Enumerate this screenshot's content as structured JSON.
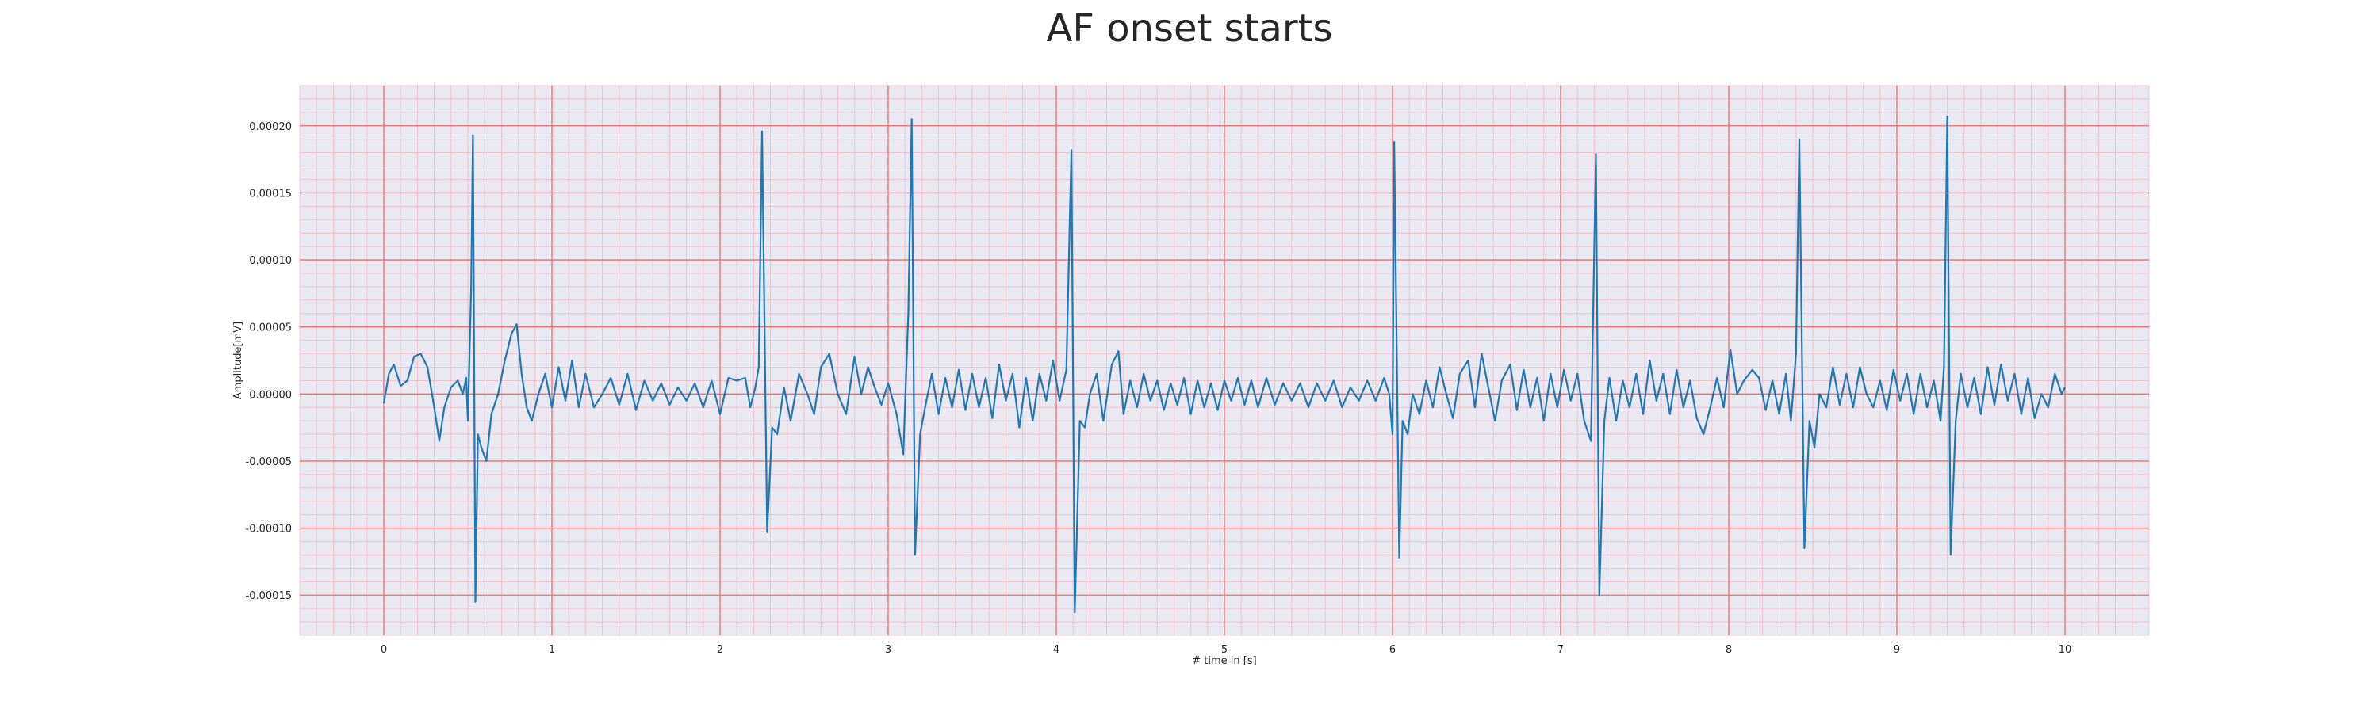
{
  "chart_data": {
    "type": "line",
    "title": "AF onset starts",
    "xlabel": "# time in [s]",
    "ylabel": "Amplitude[mV]",
    "xlim": [
      -0.5,
      10.5
    ],
    "ylim": [
      -0.00018,
      0.00023
    ],
    "x_ticks": [
      0,
      1,
      2,
      3,
      4,
      5,
      6,
      7,
      8,
      9,
      10
    ],
    "x_tick_labels": [
      "0",
      "1",
      "2",
      "3",
      "4",
      "5",
      "6",
      "7",
      "8",
      "9",
      "10"
    ],
    "y_ticks": [
      0.0002,
      0.00015,
      0.0001,
      5e-05,
      0,
      -5e-05,
      -0.0001,
      -0.00015
    ],
    "y_tick_labels": [
      "0.00020",
      "0.00015",
      "0.00010",
      "0.00005",
      "0.00000",
      "-0.00005",
      "-0.00010",
      "-0.00015"
    ],
    "grid": true,
    "colors": {
      "plot_background": "#eae9f2",
      "major_grid": "#f26d6d",
      "minor_grid": "#f3b8c6",
      "line": "#1f77b4"
    },
    "series": [
      {
        "values": [
          [
            0.0,
            -7e-06
          ],
          [
            0.03,
            1.5e-05
          ],
          [
            0.06,
            2.2e-05
          ],
          [
            0.1,
            6e-06
          ],
          [
            0.14,
            1e-05
          ],
          [
            0.18,
            2.8e-05
          ],
          [
            0.22,
            3e-05
          ],
          [
            0.26,
            2e-05
          ],
          [
            0.3,
            -1e-05
          ],
          [
            0.33,
            -3.5e-05
          ],
          [
            0.36,
            -1e-05
          ],
          [
            0.4,
            5e-06
          ],
          [
            0.44,
            1e-05
          ],
          [
            0.47,
            0.0
          ],
          [
            0.49,
            1.2e-05
          ],
          [
            0.5,
            -2e-05
          ],
          [
            0.52,
            8e-05
          ],
          [
            0.53,
            0.000193
          ],
          [
            0.545,
            -0.000155
          ],
          [
            0.56,
            -3e-05
          ],
          [
            0.58,
            -4e-05
          ],
          [
            0.61,
            -5e-05
          ],
          [
            0.64,
            -1.5e-05
          ],
          [
            0.68,
            0.0
          ],
          [
            0.72,
            2.5e-05
          ],
          [
            0.76,
            4.5e-05
          ],
          [
            0.79,
            5.2e-05
          ],
          [
            0.82,
            1.5e-05
          ],
          [
            0.85,
            -1e-05
          ],
          [
            0.88,
            -2e-05
          ],
          [
            0.92,
            0.0
          ],
          [
            0.96,
            1.5e-05
          ],
          [
            1.0,
            -1e-05
          ],
          [
            1.04,
            2e-05
          ],
          [
            1.08,
            -5e-06
          ],
          [
            1.12,
            2.5e-05
          ],
          [
            1.16,
            -1e-05
          ],
          [
            1.2,
            1.5e-05
          ],
          [
            1.25,
            -1e-05
          ],
          [
            1.3,
            0.0
          ],
          [
            1.35,
            1.2e-05
          ],
          [
            1.4,
            -8e-06
          ],
          [
            1.45,
            1.5e-05
          ],
          [
            1.5,
            -1.2e-05
          ],
          [
            1.55,
            1e-05
          ],
          [
            1.6,
            -5e-06
          ],
          [
            1.65,
            8e-06
          ],
          [
            1.7,
            -8e-06
          ],
          [
            1.75,
            5e-06
          ],
          [
            1.8,
            -5e-06
          ],
          [
            1.85,
            8e-06
          ],
          [
            1.9,
            -1e-05
          ],
          [
            1.95,
            1e-05
          ],
          [
            2.0,
            -1.5e-05
          ],
          [
            2.05,
            1.2e-05
          ],
          [
            2.1,
            1e-05
          ],
          [
            2.15,
            1.2e-05
          ],
          [
            2.18,
            -1e-05
          ],
          [
            2.21,
            5e-06
          ],
          [
            2.23,
            2e-05
          ],
          [
            2.25,
            0.000196
          ],
          [
            2.28,
            -0.000103
          ],
          [
            2.31,
            -2.5e-05
          ],
          [
            2.34,
            -3e-05
          ],
          [
            2.38,
            5e-06
          ],
          [
            2.42,
            -2e-05
          ],
          [
            2.47,
            1.5e-05
          ],
          [
            2.52,
            0.0
          ],
          [
            2.56,
            -1.5e-05
          ],
          [
            2.6,
            2e-05
          ],
          [
            2.65,
            3e-05
          ],
          [
            2.7,
            0.0
          ],
          [
            2.75,
            -1.5e-05
          ],
          [
            2.8,
            2.8e-05
          ],
          [
            2.84,
            0.0
          ],
          [
            2.88,
            2e-05
          ],
          [
            2.92,
            5e-06
          ],
          [
            2.96,
            -8e-06
          ],
          [
            3.0,
            8e-06
          ],
          [
            3.05,
            -1.5e-05
          ],
          [
            3.09,
            -4.5e-05
          ],
          [
            3.12,
            6e-05
          ],
          [
            3.14,
            0.000205
          ],
          [
            3.16,
            -0.00012
          ],
          [
            3.19,
            -3e-05
          ],
          [
            3.22,
            -1e-05
          ],
          [
            3.26,
            1.5e-05
          ],
          [
            3.3,
            -1.5e-05
          ],
          [
            3.34,
            1.2e-05
          ],
          [
            3.38,
            -1e-05
          ],
          [
            3.42,
            1.8e-05
          ],
          [
            3.46,
            -1.2e-05
          ],
          [
            3.5,
            1.5e-05
          ],
          [
            3.54,
            -1e-05
          ],
          [
            3.58,
            1.2e-05
          ],
          [
            3.62,
            -1.8e-05
          ],
          [
            3.66,
            2.2e-05
          ],
          [
            3.7,
            -5e-06
          ],
          [
            3.74,
            1.5e-05
          ],
          [
            3.78,
            -2.5e-05
          ],
          [
            3.82,
            1.2e-05
          ],
          [
            3.86,
            -2e-05
          ],
          [
            3.9,
            1.5e-05
          ],
          [
            3.94,
            -5e-06
          ],
          [
            3.98,
            2.5e-05
          ],
          [
            4.02,
            -5e-06
          ],
          [
            4.06,
            1.8e-05
          ],
          [
            4.09,
            0.000182
          ],
          [
            4.11,
            -0.000163
          ],
          [
            4.14,
            -2e-05
          ],
          [
            4.17,
            -2.5e-05
          ],
          [
            4.2,
            0.0
          ],
          [
            4.24,
            1.5e-05
          ],
          [
            4.28,
            -2e-05
          ],
          [
            4.33,
            2.2e-05
          ],
          [
            4.37,
            3.2e-05
          ],
          [
            4.4,
            -1.5e-05
          ],
          [
            4.44,
            1e-05
          ],
          [
            4.48,
            -1e-05
          ],
          [
            4.52,
            1.5e-05
          ],
          [
            4.56,
            -5e-06
          ],
          [
            4.6,
            1e-05
          ],
          [
            4.64,
            -1.2e-05
          ],
          [
            4.68,
            8e-06
          ],
          [
            4.72,
            -8e-06
          ],
          [
            4.76,
            1.2e-05
          ],
          [
            4.8,
            -1.5e-05
          ],
          [
            4.84,
            1e-05
          ],
          [
            4.88,
            -1e-05
          ],
          [
            4.92,
            8e-06
          ],
          [
            4.96,
            -1.2e-05
          ],
          [
            5.0,
            1e-05
          ],
          [
            5.04,
            -5e-06
          ],
          [
            5.08,
            1.2e-05
          ],
          [
            5.12,
            -8e-06
          ],
          [
            5.16,
            1e-05
          ],
          [
            5.2,
            -1e-05
          ],
          [
            5.25,
            1.2e-05
          ],
          [
            5.3,
            -8e-06
          ],
          [
            5.35,
            8e-06
          ],
          [
            5.4,
            -5e-06
          ],
          [
            5.45,
            8e-06
          ],
          [
            5.5,
            -1e-05
          ],
          [
            5.55,
            8e-06
          ],
          [
            5.6,
            -5e-06
          ],
          [
            5.65,
            1e-05
          ],
          [
            5.7,
            -1e-05
          ],
          [
            5.75,
            5e-06
          ],
          [
            5.8,
            -5e-06
          ],
          [
            5.85,
            1e-05
          ],
          [
            5.9,
            -5e-06
          ],
          [
            5.95,
            1.2e-05
          ],
          [
            5.98,
            0.0
          ],
          [
            6.0,
            -3e-05
          ],
          [
            6.01,
            0.000188
          ],
          [
            6.04,
            -0.000122
          ],
          [
            6.06,
            -2e-05
          ],
          [
            6.09,
            -3e-05
          ],
          [
            6.12,
            0.0
          ],
          [
            6.16,
            -1.5e-05
          ],
          [
            6.2,
            1e-05
          ],
          [
            6.24,
            -1e-05
          ],
          [
            6.28,
            2e-05
          ],
          [
            6.32,
            0.0
          ],
          [
            6.36,
            -1.8e-05
          ],
          [
            6.4,
            1.5e-05
          ],
          [
            6.45,
            2.5e-05
          ],
          [
            6.49,
            -1e-05
          ],
          [
            6.53,
            3e-05
          ],
          [
            6.57,
            5e-06
          ],
          [
            6.61,
            -2e-05
          ],
          [
            6.65,
            1e-05
          ],
          [
            6.7,
            2.2e-05
          ],
          [
            6.74,
            -1.2e-05
          ],
          [
            6.78,
            1.8e-05
          ],
          [
            6.82,
            -1e-05
          ],
          [
            6.86,
            1.2e-05
          ],
          [
            6.9,
            -2e-05
          ],
          [
            6.94,
            1.5e-05
          ],
          [
            6.98,
            -1e-05
          ],
          [
            7.02,
            1.8e-05
          ],
          [
            7.06,
            -5e-06
          ],
          [
            7.1,
            1.5e-05
          ],
          [
            7.14,
            -2e-05
          ],
          [
            7.18,
            -3.5e-05
          ],
          [
            7.21,
            0.000179
          ],
          [
            7.23,
            -0.00015
          ],
          [
            7.26,
            -2e-05
          ],
          [
            7.29,
            1.2e-05
          ],
          [
            7.33,
            -2e-05
          ],
          [
            7.37,
            1e-05
          ],
          [
            7.41,
            -1e-05
          ],
          [
            7.45,
            1.5e-05
          ],
          [
            7.49,
            -1.5e-05
          ],
          [
            7.53,
            2.5e-05
          ],
          [
            7.57,
            -5e-06
          ],
          [
            7.61,
            1.5e-05
          ],
          [
            7.65,
            -1.5e-05
          ],
          [
            7.69,
            1.8e-05
          ],
          [
            7.73,
            -1e-05
          ],
          [
            7.77,
            1e-05
          ],
          [
            7.81,
            -1.8e-05
          ],
          [
            7.85,
            -3e-05
          ],
          [
            7.89,
            -1e-05
          ],
          [
            7.93,
            1.2e-05
          ],
          [
            7.97,
            -1e-05
          ],
          [
            8.01,
            3.3e-05
          ],
          [
            8.05,
            0.0
          ],
          [
            8.09,
            1e-05
          ],
          [
            8.14,
            1.8e-05
          ],
          [
            8.18,
            1.2e-05
          ],
          [
            8.22,
            -1.2e-05
          ],
          [
            8.26,
            1e-05
          ],
          [
            8.3,
            -1.5e-05
          ],
          [
            8.34,
            1.5e-05
          ],
          [
            8.37,
            -2e-05
          ],
          [
            8.4,
            3e-05
          ],
          [
            8.42,
            0.00019
          ],
          [
            8.45,
            -0.000115
          ],
          [
            8.48,
            -2e-05
          ],
          [
            8.51,
            -4e-05
          ],
          [
            8.54,
            0.0
          ],
          [
            8.58,
            -1e-05
          ],
          [
            8.62,
            2e-05
          ],
          [
            8.66,
            -8e-06
          ],
          [
            8.7,
            1.5e-05
          ],
          [
            8.74,
            -1e-05
          ],
          [
            8.78,
            2e-05
          ],
          [
            8.82,
            0.0
          ],
          [
            8.86,
            -1e-05
          ],
          [
            8.9,
            1e-05
          ],
          [
            8.94,
            -1.2e-05
          ],
          [
            8.98,
            1.8e-05
          ],
          [
            9.02,
            -5e-06
          ],
          [
            9.06,
            1.5e-05
          ],
          [
            9.1,
            -1.5e-05
          ],
          [
            9.14,
            1.5e-05
          ],
          [
            9.18,
            -1e-05
          ],
          [
            9.22,
            1e-05
          ],
          [
            9.26,
            -2e-05
          ],
          [
            9.28,
            2e-05
          ],
          [
            9.3,
            0.000207
          ],
          [
            9.32,
            -0.00012
          ],
          [
            9.35,
            -2e-05
          ],
          [
            9.38,
            1.5e-05
          ],
          [
            9.42,
            -1e-05
          ],
          [
            9.46,
            1.2e-05
          ],
          [
            9.5,
            -1.5e-05
          ],
          [
            9.54,
            2e-05
          ],
          [
            9.58,
            -8e-06
          ],
          [
            9.62,
            2.2e-05
          ],
          [
            9.66,
            -5e-06
          ],
          [
            9.7,
            1.5e-05
          ],
          [
            9.74,
            -1.5e-05
          ],
          [
            9.78,
            1.2e-05
          ],
          [
            9.82,
            -1.8e-05
          ],
          [
            9.86,
            0.0
          ],
          [
            9.9,
            -1e-05
          ],
          [
            9.94,
            1.5e-05
          ],
          [
            9.98,
            0.0
          ],
          [
            10.0,
            5e-06
          ]
        ]
      }
    ]
  }
}
